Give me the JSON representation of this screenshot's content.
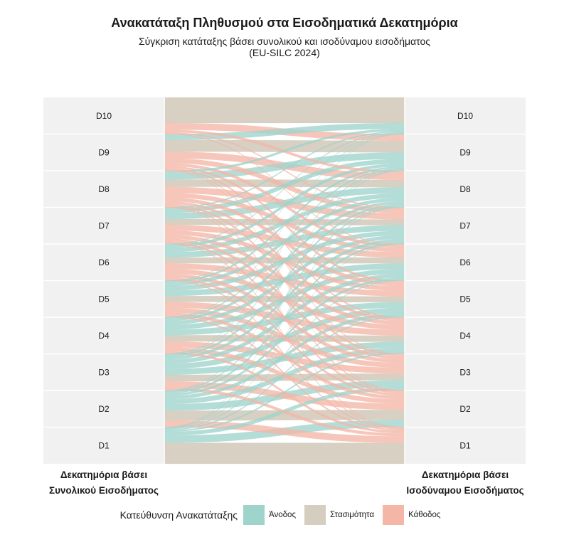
{
  "title": "Ανακατάταξη Πληθυσμού στα Εισοδηματικά Δεκατημόρια",
  "subtitle_line1": "Σύγκριση κατάταξης βάσει συνολικού και ισοδύναμου εισοδήματος",
  "subtitle_line2": "(EU-SILC 2024)",
  "legend": {
    "title": "Κατεύθυνση Ανακατάταξης",
    "items": [
      {
        "label": "Άνοδος",
        "color": "#9fd4cc"
      },
      {
        "label": "Στασιμότητα",
        "color": "#d5cec0"
      },
      {
        "label": "Κάθοδος",
        "color": "#f3b6a7"
      }
    ]
  },
  "chart_data": {
    "type": "sankey",
    "left_axis_title_line1": "Δεκατημόρια βάσει",
    "left_axis_title_line2": "Συνολικού Εισοδήματος",
    "right_axis_title_line1": "Δεκατημόρια βάσει",
    "right_axis_title_line2": "Ισοδύναμου Εισοδήματος",
    "categories": [
      "D10",
      "D9",
      "D8",
      "D7",
      "D6",
      "D5",
      "D4",
      "D3",
      "D2",
      "D1"
    ],
    "flow_matrix_rows_from_total_cols_to_equivalent_percent": {
      "D10": [
        70,
        18,
        7,
        3,
        2,
        0,
        0,
        0,
        0,
        0
      ],
      "D9": [
        16,
        32,
        18,
        13,
        8,
        6,
        4,
        2,
        1,
        0
      ],
      "D8": [
        6,
        18,
        20,
        17,
        12,
        10,
        7,
        5,
        3,
        2
      ],
      "D7": [
        3,
        12,
        17,
        16,
        15,
        12,
        10,
        8,
        5,
        2
      ],
      "D6": [
        2,
        8,
        12,
        15,
        16,
        15,
        13,
        10,
        6,
        3
      ],
      "D5": [
        1,
        5,
        9,
        12,
        15,
        16,
        16,
        13,
        9,
        4
      ],
      "D4": [
        1,
        3,
        7,
        10,
        13,
        15,
        17,
        16,
        12,
        6
      ],
      "D3": [
        1,
        2,
        5,
        8,
        11,
        14,
        16,
        18,
        17,
        8
      ],
      "D2": [
        0,
        1,
        3,
        5,
        6,
        9,
        13,
        18,
        27,
        18
      ],
      "D1": [
        0,
        1,
        2,
        1,
        2,
        3,
        4,
        10,
        20,
        57
      ]
    },
    "colors": {
      "up": "#9fd4cc",
      "stay": "#d5cec0",
      "down": "#f3b6a7"
    }
  }
}
